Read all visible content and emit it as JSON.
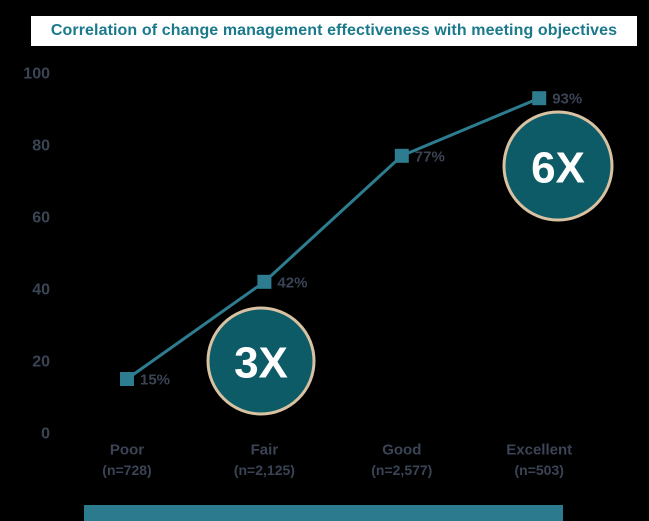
{
  "title": "Correlation of change management effectiveness with meeting objectives",
  "colors": {
    "background": "#000000",
    "title_text": "#1a798b",
    "axis_label": "#3a4454",
    "line": "#2e7c90",
    "badge_fill": "#0d5b67",
    "badge_border": "#d8c2a2",
    "badge_text": "#ffffff",
    "footer_bar": "#2b7a8e"
  },
  "chart_data": {
    "type": "line",
    "title": "Correlation of change management effectiveness with meeting objectives",
    "categories": [
      "Poor",
      "Fair",
      "Good",
      "Excellent"
    ],
    "category_sublabels": [
      "(n=728)",
      "(n=2,125)",
      "(n=2,577)",
      "(n=503)"
    ],
    "values": [
      15,
      42,
      77,
      93
    ],
    "point_labels": [
      "15%",
      "42%",
      "77%",
      "93%"
    ],
    "yticks": [
      0,
      20,
      40,
      60,
      80,
      100
    ],
    "ylim": [
      0,
      100
    ],
    "xlabel": "",
    "ylabel": "",
    "grid": false,
    "legend": "none",
    "marker_shape": "square",
    "annotations": [
      {
        "text": "3X",
        "attached_to": "Fair"
      },
      {
        "text": "6X",
        "attached_to": "Excellent"
      }
    ]
  }
}
